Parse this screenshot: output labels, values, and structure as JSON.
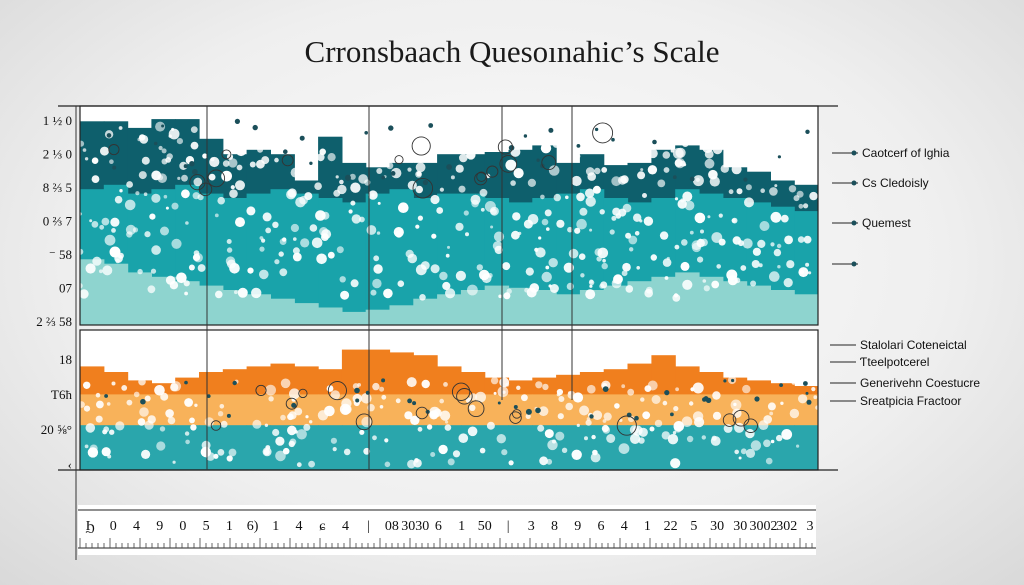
{
  "chart_data": [
    {
      "type": "area",
      "title": "Crronsbaach Quesoınahic’s Scale",
      "panel": "top",
      "y_tick_labels": [
        "1 ½ 0",
        "2 ⅓ 0",
        "8 ⅔ 5",
        "0 ⅔ 7",
        "⁻ 58",
        "07",
        "2 ⅔ 58"
      ],
      "legend": [
        "Caotcerf of lghia",
        "Cs Cledoisly",
        "Quemest",
        ""
      ],
      "series": [
        {
          "name": "dark teal band",
          "color": "#0e5f6c",
          "values": [
            0.93,
            0.93,
            0.9,
            0.94,
            0.94,
            0.85,
            0.78,
            0.8,
            0.78,
            0.66,
            0.86,
            0.74,
            0.72,
            0.74,
            0.74,
            0.78,
            0.78,
            0.79,
            0.8,
            0.82,
            0.74,
            0.78,
            0.73,
            0.74,
            0.8,
            0.82,
            0.8,
            0.72,
            0.7,
            0.66,
            0.64
          ]
        },
        {
          "name": "teal band",
          "color": "#19a3aa",
          "values": [
            0.62,
            0.64,
            0.6,
            0.62,
            0.64,
            0.6,
            0.58,
            0.6,
            0.62,
            0.6,
            0.58,
            0.56,
            0.6,
            0.62,
            0.58,
            0.6,
            0.6,
            0.58,
            0.56,
            0.58,
            0.6,
            0.62,
            0.58,
            0.56,
            0.58,
            0.62,
            0.6,
            0.58,
            0.56,
            0.54,
            0.52
          ]
        },
        {
          "name": "light teal band",
          "color": "#8ed4cf",
          "values": [
            0.3,
            0.28,
            0.24,
            0.22,
            0.2,
            0.18,
            0.16,
            0.14,
            0.12,
            0.1,
            0.08,
            0.06,
            0.07,
            0.09,
            0.12,
            0.14,
            0.16,
            0.18,
            0.17,
            0.16,
            0.14,
            0.16,
            0.18,
            0.2,
            0.22,
            0.24,
            0.22,
            0.2,
            0.18,
            0.16,
            0.14
          ]
        }
      ]
    },
    {
      "type": "area",
      "panel": "bottom",
      "y_tick_labels": [
        "18",
        "Ƭ6ħ",
        "20 ⅝°",
        "‹"
      ],
      "legend": [
        "Stalolari Coteneictal",
        "Ƭteelpotcerel",
        "Generivehn Coestucre",
        "Sreatpicia Fractoor"
      ],
      "series": [
        {
          "name": "orange band",
          "color": "#f07f1e",
          "values": [
            0.74,
            0.7,
            0.64,
            0.62,
            0.66,
            0.7,
            0.72,
            0.74,
            0.76,
            0.74,
            0.72,
            0.86,
            0.86,
            0.84,
            0.82,
            0.74,
            0.7,
            0.66,
            0.64,
            0.66,
            0.68,
            0.7,
            0.72,
            0.76,
            0.82,
            0.74,
            0.7,
            0.66,
            0.64,
            0.62,
            0.6
          ]
        },
        {
          "name": "pale orange band",
          "color": "#f8b25a",
          "values": [
            0.54,
            0.54,
            0.54,
            0.54,
            0.54,
            0.54,
            0.54,
            0.54,
            0.54,
            0.54,
            0.54,
            0.54,
            0.54,
            0.54,
            0.54,
            0.54,
            0.54,
            0.54,
            0.54,
            0.54,
            0.54,
            0.54,
            0.54,
            0.54,
            0.54,
            0.54,
            0.54,
            0.54,
            0.54,
            0.54,
            0.54
          ]
        },
        {
          "name": "teal band",
          "color": "#2aa6ac",
          "values": [
            0.32,
            0.32,
            0.32,
            0.32,
            0.32,
            0.32,
            0.32,
            0.32,
            0.32,
            0.32,
            0.32,
            0.32,
            0.32,
            0.32,
            0.32,
            0.32,
            0.32,
            0.32,
            0.32,
            0.32,
            0.32,
            0.32,
            0.32,
            0.32,
            0.32,
            0.32,
            0.32,
            0.32,
            0.32,
            0.32,
            0.32
          ]
        }
      ]
    },
    {
      "type": "axis",
      "panel": "x-axis",
      "tick_labels": [
        "Ϧ",
        "0",
        "4",
        "9",
        "0",
        "5",
        "1",
        "6)",
        "1",
        "4",
        "ɕ",
        "4",
        "|",
        "08",
        "3030",
        "6",
        "1",
        "50",
        "|",
        "3",
        "8",
        "9",
        "6",
        "4",
        "1",
        "22",
        "5",
        "30",
        "30",
        "3002",
        "302",
        "3"
      ]
    }
  ]
}
